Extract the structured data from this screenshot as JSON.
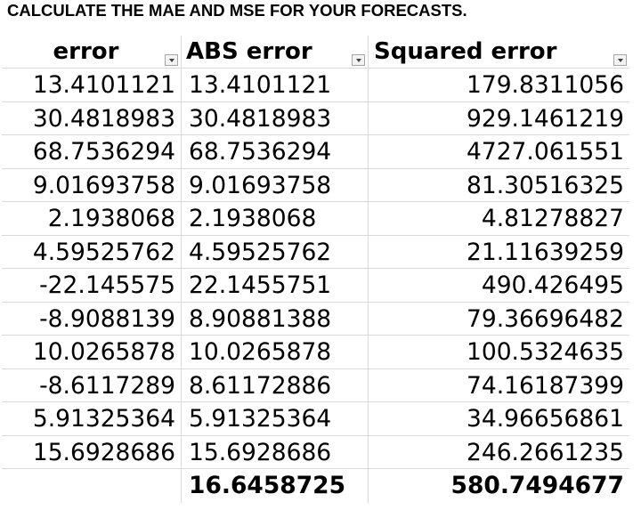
{
  "title": "CALCULATE THE MAE AND MSE FOR YOUR FORECASTS.",
  "table": {
    "headers": [
      "error",
      "ABS error",
      "Squared error"
    ],
    "rows": [
      [
        "13.4101121",
        "13.4101121",
        "179.8311056"
      ],
      [
        "30.4818983",
        "30.4818983",
        "929.1461219"
      ],
      [
        "68.7536294",
        "68.7536294",
        "4727.061551"
      ],
      [
        "9.01693758",
        "9.01693758",
        "81.30516325"
      ],
      [
        "2.1938068",
        "2.1938068",
        "4.81278827"
      ],
      [
        "4.59525762",
        "4.59525762",
        "21.11639259"
      ],
      [
        "-22.145575",
        "22.1455751",
        "490.426495"
      ],
      [
        "-8.9088139",
        "8.90881388",
        "79.36696482"
      ],
      [
        "10.0265878",
        "10.0265878",
        "100.5324635"
      ],
      [
        "-8.6117289",
        "8.61172886",
        "74.16187399"
      ],
      [
        "5.91325364",
        "5.91325364",
        "34.96656861"
      ],
      [
        "15.6928686",
        "15.6928686",
        "246.2661235"
      ]
    ],
    "totals": [
      "",
      "16.6458725",
      "580.7494677"
    ]
  }
}
